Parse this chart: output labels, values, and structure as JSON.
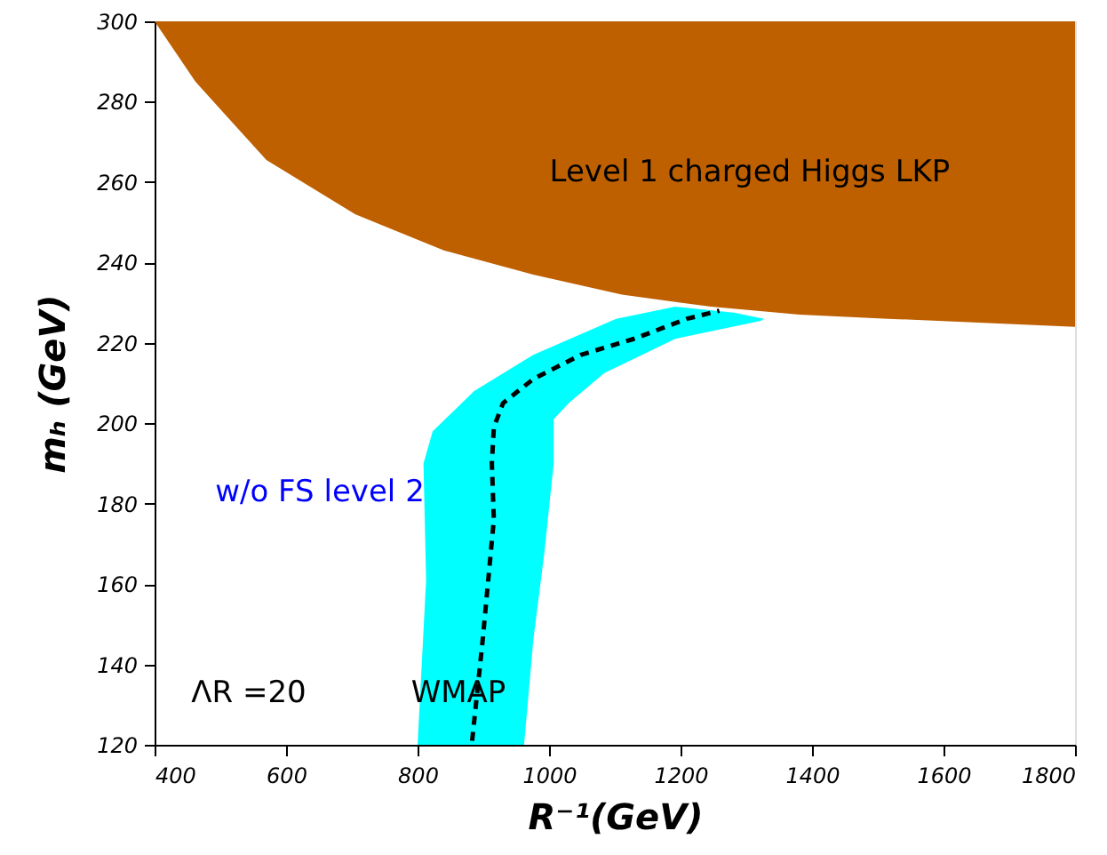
{
  "chart_data": {
    "type": "area",
    "xlabel": "R⁻¹(GeV)",
    "ylabel": "mₕ (GeV)",
    "xlim": [
      400,
      1800
    ],
    "xticks": [
      400,
      600,
      800,
      1000,
      1200,
      1400,
      1600,
      1800
    ],
    "ylim": [
      120,
      300
    ],
    "yticks": [
      120,
      140,
      160,
      180,
      200,
      220,
      240,
      260,
      280,
      300
    ],
    "grid": false,
    "series": [
      {
        "color": "#00ffff",
        "x": [
          800,
          813,
          809,
          823,
          886,
          976,
          1102,
          1192,
          1281,
          1327,
          1322,
          1192,
          1084,
          1030,
          1007,
          1007,
          993,
          976,
          962,
          800
        ],
        "values": [
          120,
          161,
          190,
          198,
          208,
          217,
          226,
          229,
          227.5,
          226,
          225.5,
          221,
          212.5,
          205,
          201,
          190,
          168,
          146,
          120,
          120
        ]
      },
      {
        "color": "#bf6000",
        "x": [
          400,
          462,
          570,
          705,
          840,
          976,
          1111,
          1246,
          1381,
          1516,
          1800,
          1800,
          400
        ],
        "values": [
          300,
          285,
          265.5,
          252,
          243,
          237,
          232,
          229,
          227,
          226,
          224,
          300,
          300
        ]
      },
      {
        "type": "line",
        "color": "#000000",
        "line_style": "dashed",
        "x": [
          883,
          899,
          916,
          913,
          916,
          930,
          976,
          1048,
          1129,
          1210,
          1259
        ],
        "values": [
          121,
          146,
          176,
          190,
          199,
          205,
          211,
          217,
          221,
          226,
          228
        ]
      }
    ],
    "annotations": [
      "Level 1 charged Higgs LKP",
      "w/o FS level 2",
      "ΛR =20",
      "WMAP"
    ]
  }
}
